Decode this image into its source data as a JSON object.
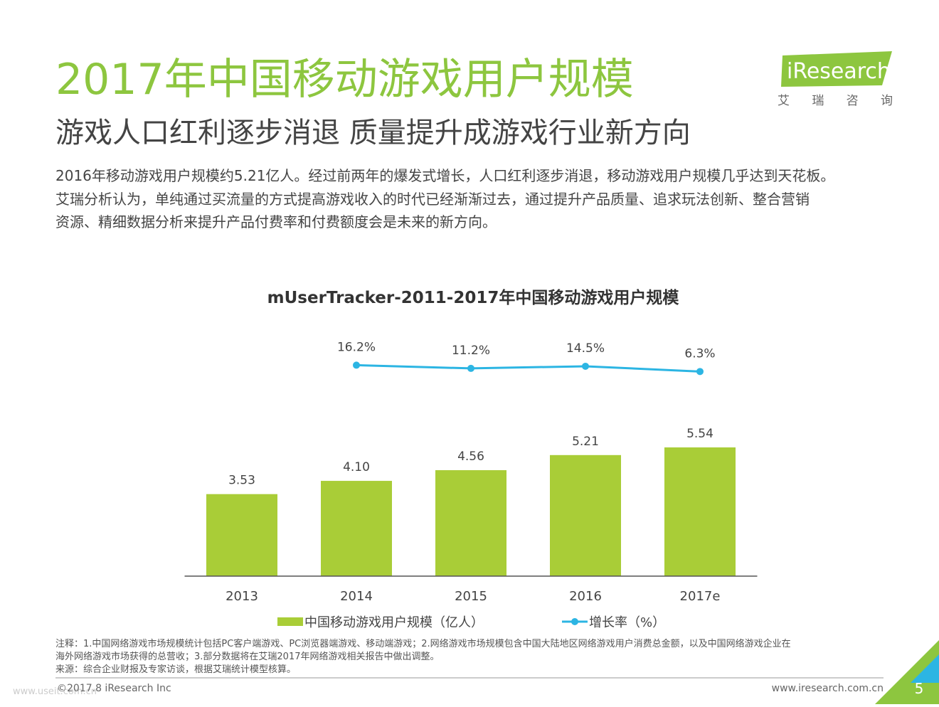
{
  "title": "2017年中国移动游戏用户规模",
  "subtitle": "游戏人口红利逐步消退 质量提升成游戏行业新方向",
  "intro": [
    "2016年移动游戏用户规模约5.21亿人。经过前两年的爆发式增长，人口红利逐步消退，移动游戏用户规模几乎达到天花板。",
    "艾瑞分析认为，单纯通过买流量的方式提高游戏收入的时代已经渐渐过去，通过提升产品质量、追求玩法创新、整合营销",
    "资源、精细数据分析来提升产品付费率和付费额度会是未来的新方向。"
  ],
  "logo": {
    "brand": "iResearch",
    "tagline": "艾 瑞 咨 询"
  },
  "chart_data": {
    "type": "bar",
    "title": "mUserTracker-2011-2017年中国移动游戏用户规模",
    "categories": [
      "2013",
      "2014",
      "2015",
      "2016",
      "2017e"
    ],
    "ylim": [
      0,
      6
    ],
    "y2lim": [
      -20,
      60
    ],
    "series": [
      {
        "name": "中国移动游戏用户规模（亿人）",
        "color": "#a9cd37",
        "type": "bar",
        "values": [
          3.53,
          4.1,
          4.56,
          5.21,
          5.54
        ],
        "value_labels": [
          "3.53",
          "4.10",
          "4.56",
          "5.21",
          "5.54"
        ]
      },
      {
        "name": "增长率（%）",
        "color": "#2cb5e3",
        "type": "line",
        "axis": "y2",
        "values": [
          null,
          16.2,
          11.2,
          14.5,
          6.3
        ],
        "value_labels": [
          null,
          "16.2%",
          "11.2%",
          "14.5%",
          "6.3%"
        ]
      }
    ]
  },
  "notes": [
    "注释：1.中国网络游戏市场规模统计包括PC客户端游戏、PC浏览器端游戏、移动端游戏；2.网络游戏市场规模包含中国大陆地区网络游戏用户消费总金额，以及中国网络游戏企业在",
    "海外网络游戏市场获得的总营收；3.部分数据将在艾瑞2017年网络游戏相关报告中做出调整。"
  ],
  "source": "来源：综合企业财报及专家访谈，根据艾瑞统计模型核算。",
  "copyright": "©2017.8 iResearch Inc",
  "website": "www.iresearch.com.cn",
  "page_number": 5,
  "watermark": "www.useit.com.cn"
}
